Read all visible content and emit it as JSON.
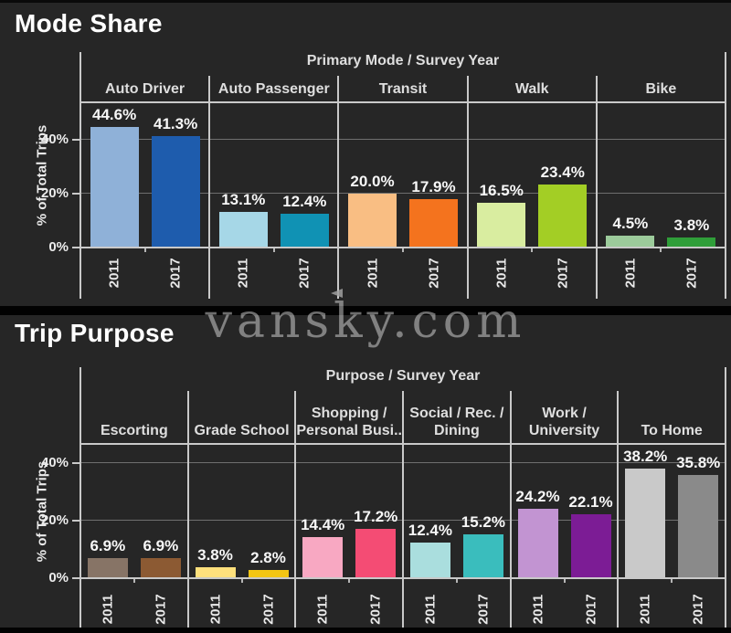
{
  "watermark": {
    "text": "vansky.com"
  },
  "theme": {
    "background": "#262626",
    "divider_band": "#020202",
    "grid_line": "#6f6f6f",
    "axis_line": "#c9c9c9",
    "title_text": "#ffffff",
    "label_text": "#ededed"
  },
  "chart_data": [
    {
      "type": "bar",
      "title": "Mode Share",
      "facet_header": "Primary Mode / Survey Year",
      "ylabel": "% of Total Trips",
      "yticks": [
        {
          "value": 0,
          "label": "0%"
        },
        {
          "value": 20,
          "label": "20%"
        },
        {
          "value": 40,
          "label": "40%"
        }
      ],
      "ylim": [
        0,
        53.5
      ],
      "grid": true,
      "legend": "none",
      "categories": [
        "Auto Driver",
        "Auto Passenger",
        "Transit",
        "Walk",
        "Bike"
      ],
      "x": [
        "2011",
        "2017"
      ],
      "series": [
        {
          "name": "2011",
          "values": [
            44.6,
            13.1,
            20.0,
            16.5,
            4.5
          ],
          "labels": [
            "44.6%",
            "13.1%",
            "20.0%",
            "16.5%",
            "4.5%"
          ]
        },
        {
          "name": "2017",
          "values": [
            41.3,
            12.4,
            17.9,
            23.4,
            3.8
          ],
          "labels": [
            "41.3%",
            "12.4%",
            "17.9%",
            "23.4%",
            "3.8%"
          ]
        }
      ],
      "bar_colors": [
        [
          "#8FB1D8",
          "#1E5CAD"
        ],
        [
          "#A6D7E7",
          "#1092B4"
        ],
        [
          "#F9BE83",
          "#F4731E"
        ],
        [
          "#D9EDA0",
          "#A3CE25"
        ],
        [
          "#9CCB9B",
          "#2F9E39"
        ]
      ]
    },
    {
      "type": "bar",
      "title": "Trip Purpose",
      "facet_header": "Purpose / Survey Year",
      "ylabel": "% of Total Trips",
      "yticks": [
        {
          "value": 0,
          "label": "0%"
        },
        {
          "value": 20,
          "label": "20%"
        },
        {
          "value": 40,
          "label": "40%"
        }
      ],
      "ylim": [
        0,
        46.3
      ],
      "grid": true,
      "legend": "none",
      "categories": [
        "Escorting",
        "Grade School",
        "Shopping /\nPersonal Busi..",
        "Social / Rec. /\nDining",
        "Work /\nUniversity",
        "To Home"
      ],
      "x": [
        "2011",
        "2017"
      ],
      "series": [
        {
          "name": "2011",
          "values": [
            6.9,
            3.8,
            14.4,
            12.4,
            24.2,
            38.2
          ],
          "labels": [
            "6.9%",
            "3.8%",
            "14.4%",
            "12.4%",
            "24.2%",
            "38.2%"
          ]
        },
        {
          "name": "2017",
          "values": [
            6.9,
            2.8,
            17.2,
            15.2,
            22.1,
            35.8
          ],
          "labels": [
            "6.9%",
            "2.8%",
            "17.2%",
            "15.2%",
            "22.1%",
            "35.8%"
          ]
        }
      ],
      "bar_colors": [
        [
          "#877466",
          "#8C5A33"
        ],
        [
          "#FEE07C",
          "#F3C513"
        ],
        [
          "#F8A8C2",
          "#F44C74"
        ],
        [
          "#AADEDE",
          "#3ABDBD"
        ],
        [
          "#C294D2",
          "#7C1C95"
        ],
        [
          "#C9C9C9",
          "#8A8A8A"
        ]
      ]
    }
  ]
}
